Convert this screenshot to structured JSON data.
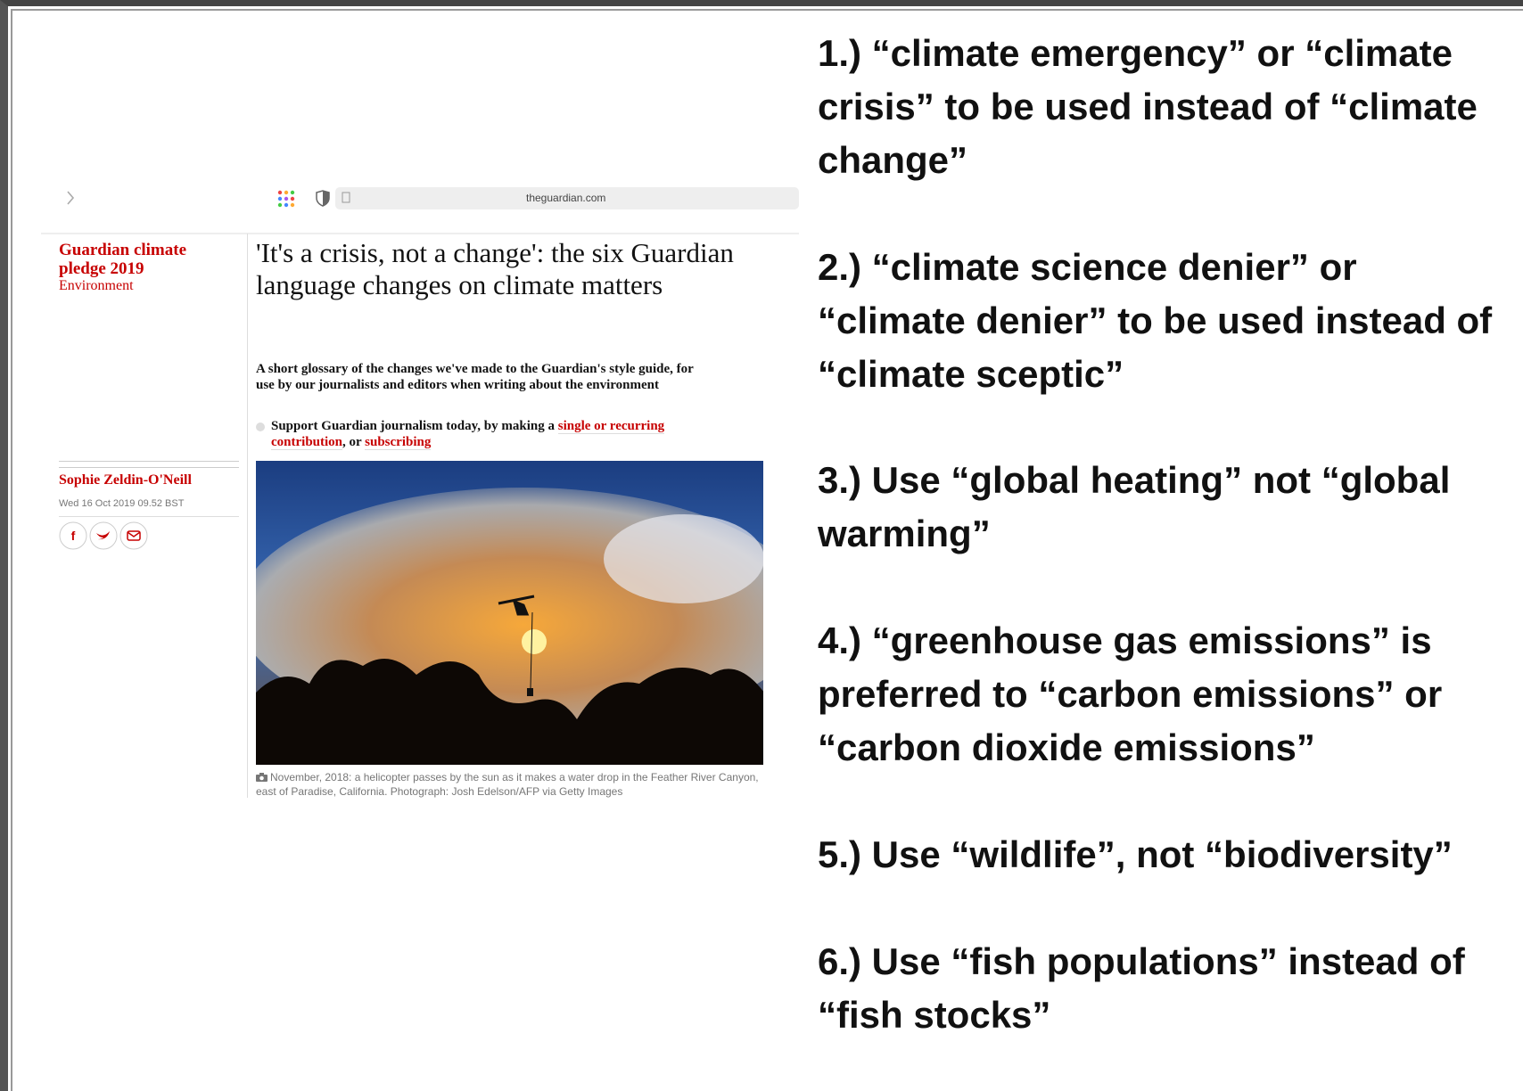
{
  "browser": {
    "url": "theguardian.com"
  },
  "article": {
    "series": "Guardian climate pledge 2019",
    "section": "Environment",
    "title": "'It's a crisis, not a change': the six Guardian language changes on climate matters",
    "standfirst": "A short glossary of the changes we've made to the Guardian's style guide, for use by our journalists and editors when writing about the environment",
    "support": {
      "text": "Support Guardian journalism today, by making a",
      "link1": "single or recurring contribution",
      "sep": ", or",
      "link2": "subscribing"
    },
    "author": "Sophie Zeldin-O'Neill",
    "date": "Wed 16 Oct 2019 09.52 BST",
    "caption": "November, 2018: a helicopter passes by the sun as it makes a water drop in the Feather River Canyon, east of Paradise, California. Photograph: Josh Edelson/AFP via Getty Images"
  },
  "items": [
    "1.) “climate emergency” or “climate crisis” to be used instead of “climate change”",
    "2.) “climate science denier” or “climate denier” to be used instead of “climate sceptic”",
    "3.) Use “global heating” not “global warming”",
    "4.) “greenhouse gas emissions” is preferred to “carbon emissions” or “carbon dioxide emissions”",
    "5.) Use “wildlife”, not “biodiversity”",
    "6.) Use “fish populations” instead of “fish stocks”"
  ]
}
